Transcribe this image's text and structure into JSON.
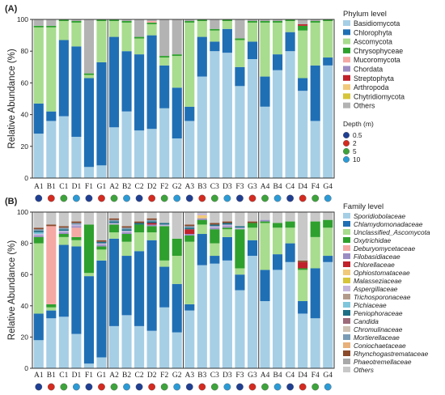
{
  "chart_data": [
    {
      "panel_label": "(A)",
      "type": "bar",
      "stacked": true,
      "ylabel": "Relative Abundance (%)",
      "yticks": [
        0,
        20,
        40,
        60,
        80,
        100
      ],
      "ylim": [
        0,
        100
      ],
      "legend_title": "Phylum level",
      "legend_position": "right",
      "categories": [
        "A1",
        "B1",
        "C1",
        "D1",
        "F1",
        "G1",
        "A2",
        "B2",
        "C2",
        "D2",
        "F2",
        "G2",
        "A3",
        "B3",
        "C3",
        "D3",
        "F3",
        "G3",
        "A4",
        "B4",
        "C4",
        "D4",
        "F4",
        "G4"
      ],
      "series": [
        {
          "name": "Basidiomycota",
          "color": "#a6cfe6",
          "values": [
            28,
            36,
            39,
            26,
            7,
            8,
            32,
            42,
            30,
            31,
            44,
            25,
            36,
            64,
            80,
            79,
            58,
            75,
            45,
            68,
            80,
            55,
            36,
            71
          ]
        },
        {
          "name": "Chlorophyta",
          "color": "#1f6fb5",
          "values": [
            19,
            6,
            48,
            57,
            56,
            65,
            57,
            38,
            48,
            59,
            27,
            32,
            9,
            25,
            6,
            15,
            12,
            11,
            19,
            10,
            12,
            8,
            35,
            5
          ]
        },
        {
          "name": "Ascomycota",
          "color": "#a8dc8e",
          "values": [
            48,
            53,
            12,
            15,
            2,
            26,
            10,
            18,
            10,
            7,
            5,
            20,
            53,
            10,
            7,
            5,
            17,
            12,
            34,
            20,
            7,
            30,
            27,
            23
          ]
        },
        {
          "name": "Chrysophyceae",
          "color": "#2ea02d",
          "values": [
            1,
            1,
            1,
            1,
            1,
            1,
            1,
            1,
            1,
            1,
            1,
            1,
            1,
            1,
            1,
            1,
            1,
            1,
            1,
            1,
            1,
            3,
            1,
            1
          ]
        },
        {
          "name": "Mucoromycota",
          "color": "#f4a9a5",
          "values": [
            0,
            0,
            0,
            0,
            0,
            0,
            0,
            0,
            0,
            1,
            0,
            0,
            0,
            0,
            0,
            0,
            0,
            0,
            0,
            0,
            0,
            0,
            0,
            0
          ]
        },
        {
          "name": "Chordata",
          "color": "#9b8cc4",
          "values": [
            0,
            0,
            0,
            0,
            0,
            0,
            0,
            0,
            0,
            0,
            0,
            0,
            0,
            0,
            0,
            0,
            0,
            0,
            0,
            0,
            0,
            0,
            0,
            0
          ]
        },
        {
          "name": "Streptophyta",
          "color": "#c0212b",
          "values": [
            0,
            0,
            0,
            0,
            0,
            0,
            0,
            0,
            0,
            0,
            0,
            0,
            0,
            0,
            0,
            0,
            0,
            0,
            0,
            0,
            0,
            1,
            0,
            0
          ]
        },
        {
          "name": "Arthropoda",
          "color": "#f1c97a",
          "values": [
            0,
            0,
            0,
            0,
            0,
            0,
            0,
            0,
            0,
            0,
            0,
            0,
            0,
            0,
            0,
            0,
            0,
            0,
            0,
            0,
            0,
            0,
            0,
            0
          ]
        },
        {
          "name": "Chytridiomycota",
          "color": "#d6c43a",
          "values": [
            0,
            0,
            0,
            0,
            0,
            0,
            0,
            0,
            0,
            0,
            0,
            0,
            0,
            0,
            0,
            0,
            0,
            0,
            0,
            0,
            0,
            0,
            0,
            0
          ]
        },
        {
          "name": "Others",
          "color": "#b3b3b3",
          "values": [
            4,
            4,
            0,
            1,
            34,
            0,
            0,
            1,
            11,
            1,
            23,
            22,
            1,
            0,
            6,
            0,
            12,
            1,
            1,
            1,
            0,
            3,
            1,
            0
          ]
        }
      ],
      "depth_legend": {
        "title": "Depth (m)",
        "items": [
          {
            "label": "0.5",
            "color": "#1f3f93"
          },
          {
            "label": "2",
            "color": "#d42a20"
          },
          {
            "label": "5",
            "color": "#3da33b"
          },
          {
            "label": "10",
            "color": "#2b9bd6"
          }
        ]
      }
    },
    {
      "panel_label": "(B)",
      "type": "bar",
      "stacked": true,
      "ylabel": "Relative Abundance (%)",
      "yticks": [
        0,
        20,
        40,
        60,
        80,
        100
      ],
      "ylim": [
        0,
        100
      ],
      "legend_title": "Family level",
      "legend_position": "right",
      "categories": [
        "A1",
        "B1",
        "C1",
        "D1",
        "F1",
        "G1",
        "A2",
        "B2",
        "C2",
        "D2",
        "F2",
        "G2",
        "A3",
        "B3",
        "C3",
        "D3",
        "F3",
        "G3",
        "A4",
        "B4",
        "C4",
        "D4",
        "F4",
        "G4"
      ],
      "series": [
        {
          "name": "Sporidiobolaceae",
          "color": "#a6cfe6",
          "values": [
            18,
            32,
            33,
            22,
            3,
            7,
            27,
            34,
            27,
            24,
            39,
            23,
            37,
            66,
            67,
            69,
            50,
            72,
            43,
            63,
            68,
            35,
            32,
            68
          ]
        },
        {
          "name": "Chlamydomonadaceae",
          "color": "#1f6fb5",
          "values": [
            17,
            5,
            46,
            56,
            56,
            62,
            56,
            38,
            48,
            58,
            26,
            31,
            4,
            20,
            5,
            15,
            10,
            10,
            20,
            10,
            12,
            8,
            32,
            4
          ]
        },
        {
          "name": "Unclassified_Ascomycota",
          "color": "#a8dc8e",
          "values": [
            45,
            2,
            5,
            4,
            2,
            7,
            4,
            9,
            12,
            5,
            4,
            18,
            40,
            6,
            8,
            5,
            4,
            8,
            30,
            17,
            10,
            20,
            20,
            18
          ]
        },
        {
          "name": "Oxytrichidae",
          "color": "#2ea02d",
          "values": [
            4,
            2,
            2,
            2,
            31,
            2,
            5,
            5,
            5,
            4,
            22,
            11,
            4,
            3,
            9,
            1,
            25,
            3,
            1,
            3,
            4,
            1,
            10,
            5
          ]
        },
        {
          "name": "Deburyomycetaceae",
          "color": "#f4a9a5",
          "values": [
            0,
            50,
            0,
            6,
            0,
            0,
            0,
            0,
            0,
            0,
            0,
            0,
            0,
            0,
            0,
            0,
            0,
            0,
            0,
            0,
            0,
            0,
            0,
            0
          ]
        },
        {
          "name": "Filobasidiaceae",
          "color": "#9b8cc4",
          "values": [
            1,
            0,
            1,
            1,
            0,
            1,
            0,
            1,
            0,
            1,
            0,
            0,
            1,
            1,
            1,
            1,
            0,
            0,
            1,
            0,
            0,
            0,
            0,
            0
          ]
        },
        {
          "name": "Chlorellaceae",
          "color": "#c0212b",
          "values": [
            0,
            0,
            0,
            0,
            0,
            0,
            0,
            0,
            0,
            1,
            0,
            0,
            3,
            0,
            0,
            0,
            0,
            0,
            0,
            0,
            0,
            4,
            0,
            0
          ]
        },
        {
          "name": "Ophiostomataceae",
          "color": "#f1c97a",
          "values": [
            0,
            0,
            0,
            0,
            0,
            0,
            0,
            0,
            0,
            0,
            0,
            0,
            0,
            2,
            0,
            0,
            0,
            0,
            0,
            0,
            0,
            0,
            0,
            0
          ]
        },
        {
          "name": "Malasseziaceae",
          "color": "#d6c43a",
          "values": [
            0,
            0,
            0,
            0,
            0,
            0,
            0,
            0,
            0,
            0,
            0,
            0,
            0,
            0,
            0,
            0,
            0,
            0,
            0,
            0,
            0,
            0,
            0,
            0
          ]
        },
        {
          "name": "Aspergillaceae",
          "color": "#c4b5dd",
          "values": [
            1,
            0,
            1,
            1,
            0,
            1,
            1,
            1,
            0,
            0,
            1,
            0,
            0,
            1,
            1,
            1,
            1,
            0,
            0,
            0,
            0,
            0,
            0,
            0
          ]
        },
        {
          "name": "Trichosporonaceae",
          "color": "#b39b8c",
          "values": [
            0,
            0,
            0,
            0,
            0,
            0,
            0,
            0,
            0,
            0,
            0,
            0,
            0,
            0,
            0,
            0,
            0,
            0,
            0,
            0,
            0,
            0,
            0,
            0
          ]
        },
        {
          "name": "Pichiaceae",
          "color": "#7fc6dc",
          "values": [
            1,
            0,
            0,
            0,
            0,
            0,
            0,
            0,
            0,
            0,
            0,
            0,
            0,
            0,
            0,
            0,
            0,
            0,
            0,
            0,
            0,
            0,
            0,
            0
          ]
        },
        {
          "name": "Peniophoraceae",
          "color": "#1d6f86",
          "values": [
            1,
            0,
            1,
            0,
            0,
            1,
            1,
            1,
            1,
            1,
            1,
            0,
            1,
            0,
            1,
            1,
            1,
            0,
            0,
            0,
            0,
            0,
            0,
            0
          ]
        },
        {
          "name": "Candida",
          "color": "#9d6b7a",
          "values": [
            0,
            0,
            0,
            0,
            0,
            0,
            0,
            0,
            0,
            0,
            0,
            0,
            0,
            0,
            0,
            0,
            0,
            0,
            0,
            0,
            0,
            0,
            0,
            0
          ]
        },
        {
          "name": "Chromulinaceae",
          "color": "#cfc2b3",
          "values": [
            0,
            0,
            0,
            0,
            0,
            0,
            0,
            0,
            0,
            0,
            0,
            0,
            0,
            0,
            0,
            0,
            0,
            0,
            0,
            0,
            0,
            0,
            0,
            0
          ]
        },
        {
          "name": "Mortierellaceae",
          "color": "#7b9cb5",
          "values": [
            1,
            0,
            1,
            1,
            0,
            0,
            1,
            1,
            0,
            1,
            0,
            0,
            1,
            0,
            0,
            0,
            0,
            0,
            0,
            0,
            0,
            0,
            0,
            0
          ]
        },
        {
          "name": "Coniochaetaceae",
          "color": "#e8b07a",
          "values": [
            0,
            0,
            0,
            0,
            0,
            0,
            0,
            0,
            0,
            0,
            0,
            0,
            0,
            0,
            0,
            0,
            0,
            0,
            0,
            0,
            0,
            0,
            0,
            0
          ]
        },
        {
          "name": "Rhynchogastremataceae",
          "color": "#8b4a2b",
          "values": [
            1,
            1,
            1,
            1,
            0,
            1,
            1,
            1,
            1,
            1,
            0,
            0,
            1,
            0,
            1,
            1,
            0,
            1,
            0,
            0,
            0,
            1,
            0,
            0
          ]
        },
        {
          "name": "Phaeotremellaceae",
          "color": "#a9a9a9",
          "values": [
            0,
            0,
            0,
            0,
            0,
            0,
            0,
            0,
            0,
            0,
            0,
            0,
            0,
            0,
            0,
            0,
            0,
            0,
            0,
            0,
            0,
            0,
            0,
            0
          ]
        },
        {
          "name": "Others",
          "color": "#c8c8c8",
          "values": [
            10,
            8,
            9,
            6,
            8,
            18,
            4,
            9,
            6,
            4,
            7,
            17,
            8,
            1,
            7,
            6,
            9,
            6,
            5,
            7,
            6,
            31,
            6,
            5
          ]
        }
      ]
    }
  ]
}
